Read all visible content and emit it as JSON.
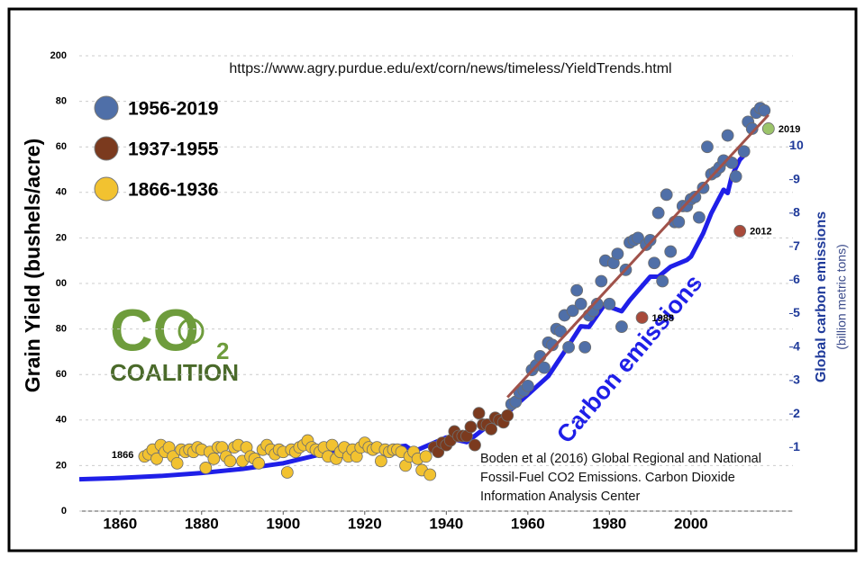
{
  "chart_data": {
    "type": "scatter",
    "annotation_url": "https://www.agry.purdue.edu/ext/corn/news/timeless/YieldTrends.html",
    "ylabel": "Grain Yield (bushels/acre)",
    "y2label": "Global carbon emissions",
    "y2sublabel": "(billion metric tons)",
    "xlim": [
      1850,
      2025
    ],
    "xticks": [
      1860,
      1880,
      1900,
      1920,
      1940,
      1960,
      1980,
      2000
    ],
    "ylim": [
      0,
      200
    ],
    "yticks": [
      0,
      20,
      40,
      60,
      80,
      {
        "value": 100,
        "label": "00"
      },
      {
        "value": 120,
        "label": "20"
      },
      {
        "value": 140,
        "label": "40"
      },
      {
        "value": 160,
        "label": "60"
      },
      {
        "value": 180,
        "label": "80"
      },
      200
    ],
    "y2lim": [
      -0.9,
      12.7
    ],
    "y2ticks": [
      1,
      2,
      3,
      4,
      5,
      6,
      7,
      8,
      9,
      10
    ],
    "series": [
      {
        "name": "1956-2019",
        "color": "#4f6fa8",
        "x": [
          1956,
          1957,
          1958,
          1959,
          1960,
          1961,
          1962,
          1963,
          1964,
          1965,
          1966,
          1967,
          1968,
          1969,
          1970,
          1971,
          1972,
          1973,
          1974,
          1975,
          1976,
          1977,
          1978,
          1979,
          1980,
          1981,
          1982,
          1983,
          1984,
          1985,
          1986,
          1987,
          1989,
          1990,
          1991,
          1992,
          1993,
          1994,
          1995,
          1996,
          1997,
          1998,
          1999,
          2000,
          2001,
          2002,
          2003,
          2004,
          2005,
          2006,
          2007,
          2008,
          2009,
          2010,
          2011,
          2013,
          2014,
          2015,
          2016,
          2017,
          2018
        ],
        "values": [
          47,
          48,
          52,
          53,
          55,
          62,
          64,
          68,
          63,
          74,
          73,
          80,
          79,
          86,
          72,
          88,
          97,
          91,
          72,
          86,
          88,
          91,
          101,
          110,
          91,
          109,
          113,
          81,
          106,
          118,
          119,
          120,
          117,
          119,
          109,
          131,
          101,
          139,
          114,
          127,
          127,
          134,
          134,
          137,
          138,
          129,
          142,
          160,
          148,
          149,
          151,
          154,
          165,
          153,
          147,
          158,
          171,
          168,
          175,
          177,
          176
        ]
      },
      {
        "name": "1937-1955",
        "color": "#7b3a1e",
        "x": [
          1937,
          1938,
          1939,
          1940,
          1941,
          1942,
          1943,
          1944,
          1945,
          1946,
          1947,
          1948,
          1949,
          1950,
          1951,
          1952,
          1953,
          1954,
          1955
        ],
        "values": [
          28,
          26,
          30,
          29,
          31,
          35,
          33,
          33,
          33,
          37,
          29,
          43,
          38,
          38,
          36,
          41,
          40,
          39,
          42
        ]
      },
      {
        "name": "1866-1936",
        "color": "#f2c230",
        "x": [
          1866,
          1867,
          1868,
          1869,
          1870,
          1871,
          1872,
          1873,
          1874,
          1875,
          1876,
          1877,
          1878,
          1879,
          1880,
          1881,
          1882,
          1883,
          1884,
          1885,
          1886,
          1887,
          1888,
          1889,
          1890,
          1891,
          1892,
          1893,
          1894,
          1895,
          1896,
          1897,
          1898,
          1899,
          1900,
          1901,
          1902,
          1903,
          1904,
          1905,
          1906,
          1907,
          1908,
          1909,
          1910,
          1911,
          1912,
          1913,
          1914,
          1915,
          1916,
          1917,
          1918,
          1919,
          1920,
          1921,
          1922,
          1923,
          1924,
          1925,
          1926,
          1927,
          1928,
          1929,
          1930,
          1931,
          1932,
          1933,
          1934,
          1935,
          1936
        ],
        "values": [
          24,
          25,
          27,
          23,
          29,
          26,
          28,
          24,
          21,
          27,
          26,
          27,
          26,
          28,
          27,
          19,
          26,
          23,
          28,
          28,
          24,
          22,
          28,
          29,
          22,
          28,
          24,
          23,
          21,
          27,
          29,
          27,
          25,
          27,
          26,
          17,
          27,
          26,
          28,
          29,
          31,
          28,
          27,
          26,
          28,
          24,
          29,
          23,
          26,
          28,
          24,
          27,
          24,
          28,
          30,
          28,
          27,
          28,
          22,
          27,
          26,
          27,
          27,
          26,
          20,
          24,
          26,
          23,
          18,
          24,
          16
        ]
      }
    ],
    "highlights": [
      {
        "label": "1988",
        "x": 1988,
        "value": 85,
        "color": "#a84a3a"
      },
      {
        "label": "2012",
        "x": 2012,
        "value": 123,
        "color": "#a84a3a"
      },
      {
        "label": "2019",
        "x": 2019,
        "value": 168,
        "color": "#9cc46a"
      }
    ],
    "start_label": {
      "label": "1866",
      "x": 1866,
      "value": 24
    },
    "trend": {
      "color": "#a0524a",
      "x": [
        1955,
        2019
      ],
      "values": [
        50,
        174
      ]
    },
    "emissions": {
      "name": "Carbon emissions",
      "color": "#1f1fe8",
      "axis": "y2",
      "x": [
        1850,
        1860,
        1870,
        1880,
        1890,
        1900,
        1910,
        1913,
        1920,
        1930,
        1932,
        1940,
        1945,
        1950,
        1955,
        1960,
        1965,
        1970,
        1973,
        1975,
        1979,
        1980,
        1983,
        1985,
        1990,
        1992,
        1995,
        1999,
        2000,
        2003,
        2005,
        2008,
        2009,
        2010,
        2012,
        2014
      ],
      "values": [
        0.05,
        0.09,
        0.15,
        0.24,
        0.36,
        0.53,
        0.82,
        0.94,
        0.93,
        1.05,
        0.88,
        1.3,
        1.16,
        1.63,
        2.04,
        2.58,
        3.13,
        4.05,
        4.62,
        4.6,
        5.3,
        5.2,
        5.07,
        5.4,
        6.1,
        6.1,
        6.4,
        6.6,
        6.7,
        7.4,
        8.0,
        8.7,
        8.6,
        9.1,
        9.6,
        9.85
      ]
    },
    "citation": [
      "Boden et al (2016) Global Regional and National",
      "Fossil-Fuel CO2 Emissions. Carbon Dioxide",
      "Information Analysis Center"
    ],
    "logo": {
      "main": "CO",
      "sub": "2",
      "name": "COALITION"
    }
  }
}
